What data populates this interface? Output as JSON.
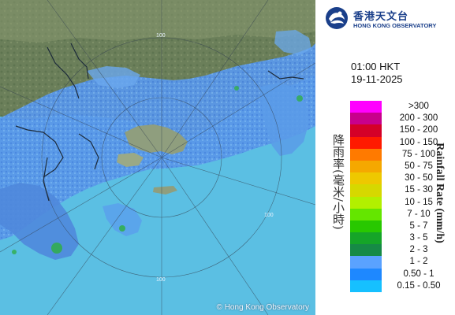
{
  "header": {
    "org_name_cn": "香港天文台",
    "org_name_en": "HONG KONG OBSERVATORY",
    "logo_icon": "hko-logo-icon"
  },
  "timestamp": {
    "time": "01:00 HKT",
    "date": "19-11-2025"
  },
  "legend": {
    "title_cn": "降雨率(毫米/小時)",
    "title_en": "Rainfall Rate (mm/h)",
    "items": [
      {
        "label": ">300",
        "color": "#ff00ff"
      },
      {
        "label": "200 - 300",
        "color": "#c8008c"
      },
      {
        "label": "150 - 200",
        "color": "#d40028"
      },
      {
        "label": "100 - 150",
        "color": "#ff1a00"
      },
      {
        "label": "75 - 100",
        "color": "#ff7a00"
      },
      {
        "label": "50 - 75",
        "color": "#f5a800"
      },
      {
        "label": "30 - 50",
        "color": "#eec800"
      },
      {
        "label": "15 - 30",
        "color": "#d6d800"
      },
      {
        "label": "10 - 15",
        "color": "#b2f000"
      },
      {
        "label": "7 - 10",
        "color": "#64e600"
      },
      {
        "label": "5 - 7",
        "color": "#28c800"
      },
      {
        "label": "3 - 5",
        "color": "#15a528"
      },
      {
        "label": "2 - 3",
        "color": "#168a46"
      },
      {
        "label": "1 - 2",
        "color": "#5aa2ff"
      },
      {
        "label": "0.50 - 1",
        "color": "#1e88ff"
      },
      {
        "label": "0.15 - 0.50",
        "color": "#16c0ff"
      }
    ]
  },
  "map": {
    "copyright": "© Hong Kong Observatory",
    "range_rings": [
      "100",
      "100",
      "100"
    ]
  }
}
